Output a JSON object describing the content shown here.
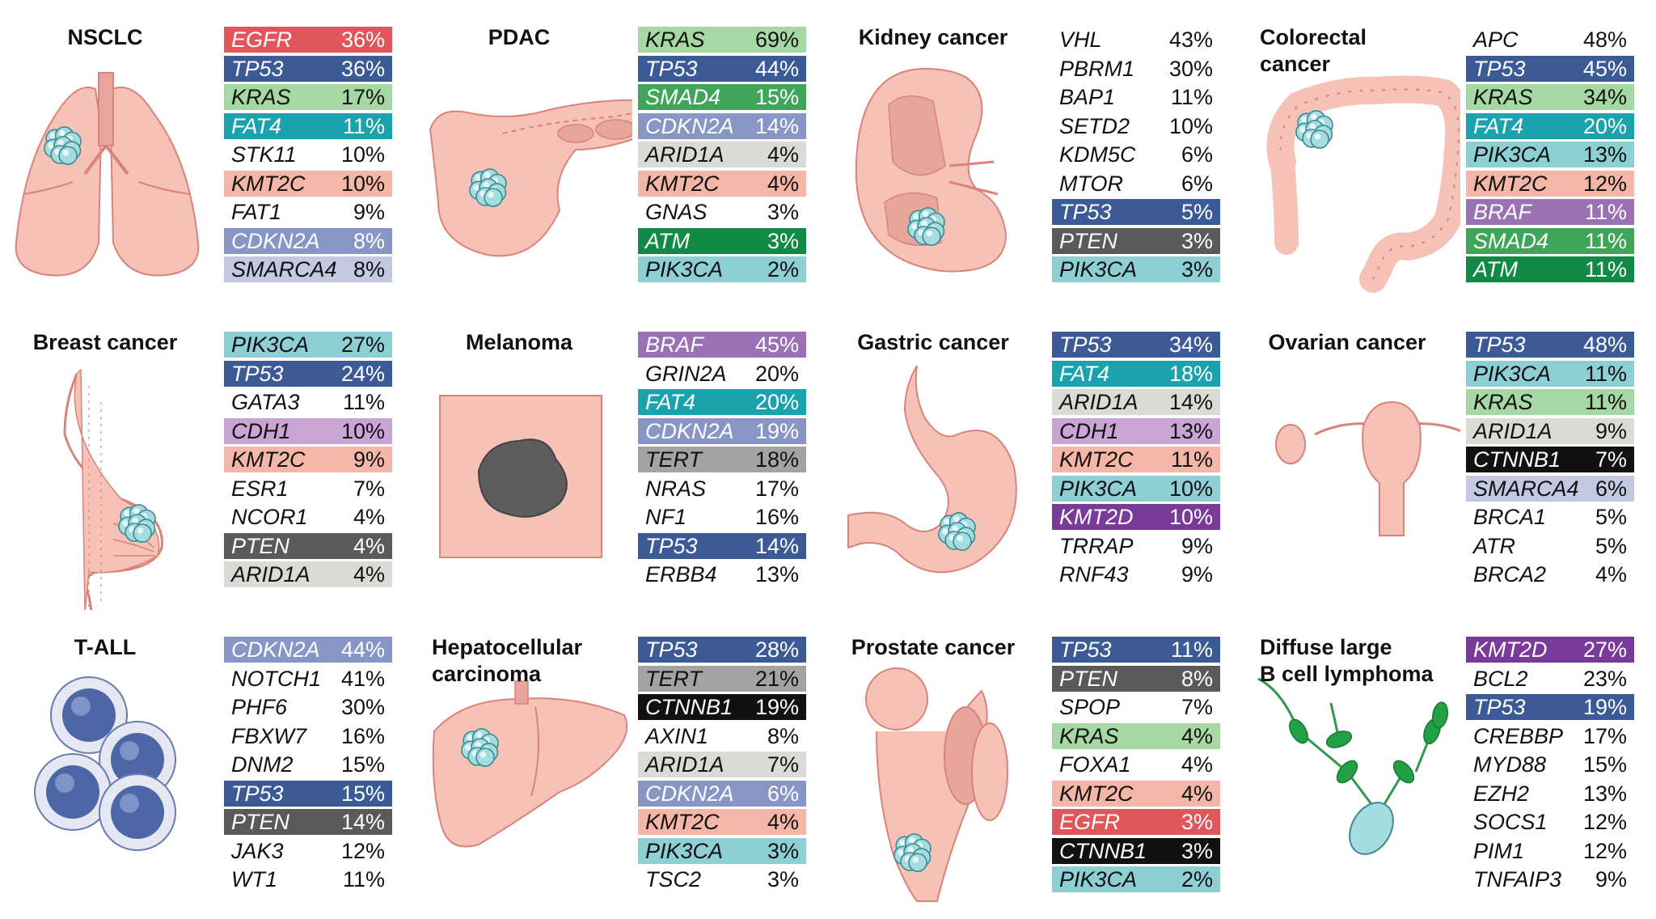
{
  "colors": {
    "EGFR": "#e0565a",
    "TP53": "#3c5a96",
    "KRAS": "#a6d8a4",
    "FAT4": "#1aa3ad",
    "KMT2C": "#f4b6a6",
    "CDKN2A": "#8796c4",
    "SMARCA4": "#c3c9e1",
    "SMAD4": "#3fa659",
    "ARID1A": "#dadad6",
    "ATM": "#108a44",
    "PIK3CA": "#8ecfd4",
    "PTEN": "#5a5a5a",
    "BRAF": "#9a72b4",
    "CDH1": "#c9a5d5",
    "TERT": "#a3a3a3",
    "CTNNB1": "#111111",
    "KMT2D": "#7a3a9a"
  },
  "dark_text_genes": [
    "EGFR",
    "TP53",
    "FAT4",
    "CDKN2A",
    "SMAD4",
    "ATM",
    "PTEN",
    "BRAF",
    "KMT2D",
    "CTNNB1"
  ],
  "cancers": [
    {
      "title": "NSCLC",
      "illustration": "lungs-icon",
      "genes": [
        {
          "gene": "EGFR",
          "pct": "36%"
        },
        {
          "gene": "TP53",
          "pct": "36%"
        },
        {
          "gene": "KRAS",
          "pct": "17%"
        },
        {
          "gene": "FAT4",
          "pct": "11%"
        },
        {
          "gene": "STK11",
          "pct": "10%"
        },
        {
          "gene": "KMT2C",
          "pct": "10%"
        },
        {
          "gene": "FAT1",
          "pct": "9%"
        },
        {
          "gene": "CDKN2A",
          "pct": "8%"
        },
        {
          "gene": "SMARCA4",
          "pct": "8%"
        }
      ]
    },
    {
      "title": "PDAC",
      "illustration": "pancreas-icon",
      "genes": [
        {
          "gene": "KRAS",
          "pct": "69%"
        },
        {
          "gene": "TP53",
          "pct": "44%"
        },
        {
          "gene": "SMAD4",
          "pct": "15%"
        },
        {
          "gene": "CDKN2A",
          "pct": "14%"
        },
        {
          "gene": "ARID1A",
          "pct": "4%"
        },
        {
          "gene": "KMT2C",
          "pct": "4%"
        },
        {
          "gene": "GNAS",
          "pct": "3%"
        },
        {
          "gene": "ATM",
          "pct": "3%"
        },
        {
          "gene": "PIK3CA",
          "pct": "2%"
        }
      ]
    },
    {
      "title": "Kidney cancer",
      "illustration": "kidney-icon",
      "genes": [
        {
          "gene": "VHL",
          "pct": "43%"
        },
        {
          "gene": "PBRM1",
          "pct": "30%"
        },
        {
          "gene": "BAP1",
          "pct": "11%"
        },
        {
          "gene": "SETD2",
          "pct": "10%"
        },
        {
          "gene": "KDM5C",
          "pct": "6%"
        },
        {
          "gene": "MTOR",
          "pct": "6%"
        },
        {
          "gene": "TP53",
          "pct": "5%"
        },
        {
          "gene": "PTEN",
          "pct": "3%"
        },
        {
          "gene": "PIK3CA",
          "pct": "3%"
        }
      ]
    },
    {
      "title": "Colorectal cancer",
      "illustration": "colon-icon",
      "genes": [
        {
          "gene": "APC",
          "pct": "48%"
        },
        {
          "gene": "TP53",
          "pct": "45%"
        },
        {
          "gene": "KRAS",
          "pct": "34%"
        },
        {
          "gene": "FAT4",
          "pct": "20%"
        },
        {
          "gene": "PIK3CA",
          "pct": "13%"
        },
        {
          "gene": "KMT2C",
          "pct": "12%"
        },
        {
          "gene": "BRAF",
          "pct": "11%"
        },
        {
          "gene": "SMAD4",
          "pct": "11%"
        },
        {
          "gene": "ATM",
          "pct": "11%"
        }
      ]
    },
    {
      "title": "Breast cancer",
      "illustration": "breast-icon",
      "genes": [
        {
          "gene": "PIK3CA",
          "pct": "27%"
        },
        {
          "gene": "TP53",
          "pct": "24%"
        },
        {
          "gene": "GATA3",
          "pct": "11%"
        },
        {
          "gene": "CDH1",
          "pct": "10%"
        },
        {
          "gene": "KMT2C",
          "pct": "9%"
        },
        {
          "gene": "ESR1",
          "pct": "7%"
        },
        {
          "gene": "NCOR1",
          "pct": "4%"
        },
        {
          "gene": "PTEN",
          "pct": "4%"
        },
        {
          "gene": "ARID1A",
          "pct": "4%"
        }
      ]
    },
    {
      "title": "Melanoma",
      "illustration": "skin-lesion-icon",
      "genes": [
        {
          "gene": "BRAF",
          "pct": "45%"
        },
        {
          "gene": "GRIN2A",
          "pct": "20%"
        },
        {
          "gene": "FAT4",
          "pct": "20%"
        },
        {
          "gene": "CDKN2A",
          "pct": "19%"
        },
        {
          "gene": "TERT",
          "pct": "18%"
        },
        {
          "gene": "NRAS",
          "pct": "17%"
        },
        {
          "gene": "NF1",
          "pct": "16%"
        },
        {
          "gene": "TP53",
          "pct": "14%"
        },
        {
          "gene": "ERBB4",
          "pct": "13%"
        }
      ]
    },
    {
      "title": "Gastric cancer",
      "illustration": "stomach-icon",
      "genes": [
        {
          "gene": "TP53",
          "pct": "34%"
        },
        {
          "gene": "FAT4",
          "pct": "18%"
        },
        {
          "gene": "ARID1A",
          "pct": "14%"
        },
        {
          "gene": "CDH1",
          "pct": "13%"
        },
        {
          "gene": "KMT2C",
          "pct": "11%"
        },
        {
          "gene": "PIK3CA",
          "pct": "10%"
        },
        {
          "gene": "KMT2D",
          "pct": "10%"
        },
        {
          "gene": "TRRAP",
          "pct": "9%"
        },
        {
          "gene": "RNF43",
          "pct": "9%"
        }
      ]
    },
    {
      "title": "Ovarian cancer",
      "illustration": "ovary-icon",
      "genes": [
        {
          "gene": "TP53",
          "pct": "48%"
        },
        {
          "gene": "PIK3CA",
          "pct": "11%"
        },
        {
          "gene": "KRAS",
          "pct": "11%"
        },
        {
          "gene": "ARID1A",
          "pct": "9%"
        },
        {
          "gene": "CTNNB1",
          "pct": "7%"
        },
        {
          "gene": "SMARCA4",
          "pct": "6%"
        },
        {
          "gene": "BRCA1",
          "pct": "5%"
        },
        {
          "gene": "ATR",
          "pct": "5%"
        },
        {
          "gene": "BRCA2",
          "pct": "4%"
        }
      ]
    },
    {
      "title": "T-ALL",
      "illustration": "t-cells-icon",
      "genes": [
        {
          "gene": "CDKN2A",
          "pct": "44%"
        },
        {
          "gene": "NOTCH1",
          "pct": "41%"
        },
        {
          "gene": "PHF6",
          "pct": "30%"
        },
        {
          "gene": "FBXW7",
          "pct": "16%"
        },
        {
          "gene": "DNM2",
          "pct": "15%"
        },
        {
          "gene": "TP53",
          "pct": "15%"
        },
        {
          "gene": "PTEN",
          "pct": "14%"
        },
        {
          "gene": "JAK3",
          "pct": "12%"
        },
        {
          "gene": "WT1",
          "pct": "11%"
        }
      ]
    },
    {
      "title": "Hepatocellular carcinoma",
      "illustration": "liver-icon",
      "genes": [
        {
          "gene": "TP53",
          "pct": "28%"
        },
        {
          "gene": "TERT",
          "pct": "21%"
        },
        {
          "gene": "CTNNB1",
          "pct": "19%"
        },
        {
          "gene": "AXIN1",
          "pct": "8%"
        },
        {
          "gene": "ARID1A",
          "pct": "7%"
        },
        {
          "gene": "CDKN2A",
          "pct": "6%"
        },
        {
          "gene": "KMT2C",
          "pct": "4%"
        },
        {
          "gene": "PIK3CA",
          "pct": "3%"
        },
        {
          "gene": "TSC2",
          "pct": "3%"
        }
      ]
    },
    {
      "title": "Prostate cancer",
      "illustration": "prostate-icon",
      "genes": [
        {
          "gene": "TP53",
          "pct": "11%"
        },
        {
          "gene": "PTEN",
          "pct": "8%"
        },
        {
          "gene": "SPOP",
          "pct": "7%"
        },
        {
          "gene": "KRAS",
          "pct": "4%"
        },
        {
          "gene": "FOXA1",
          "pct": "4%"
        },
        {
          "gene": "KMT2C",
          "pct": "4%"
        },
        {
          "gene": "EGFR",
          "pct": "3%"
        },
        {
          "gene": "CTNNB1",
          "pct": "3%"
        },
        {
          "gene": "PIK3CA",
          "pct": "2%"
        }
      ]
    },
    {
      "title": "Diffuse large B cell lymphoma",
      "illustration": "lymph-node-icon",
      "genes": [
        {
          "gene": "KMT2D",
          "pct": "27%"
        },
        {
          "gene": "BCL2",
          "pct": "23%"
        },
        {
          "gene": "TP53",
          "pct": "19%"
        },
        {
          "gene": "CREBBP",
          "pct": "17%"
        },
        {
          "gene": "MYD88",
          "pct": "15%"
        },
        {
          "gene": "EZH2",
          "pct": "13%"
        },
        {
          "gene": "SOCS1",
          "pct": "12%"
        },
        {
          "gene": "PIM1",
          "pct": "12%"
        },
        {
          "gene": "TNFAIP3",
          "pct": "9%"
        }
      ]
    }
  ]
}
